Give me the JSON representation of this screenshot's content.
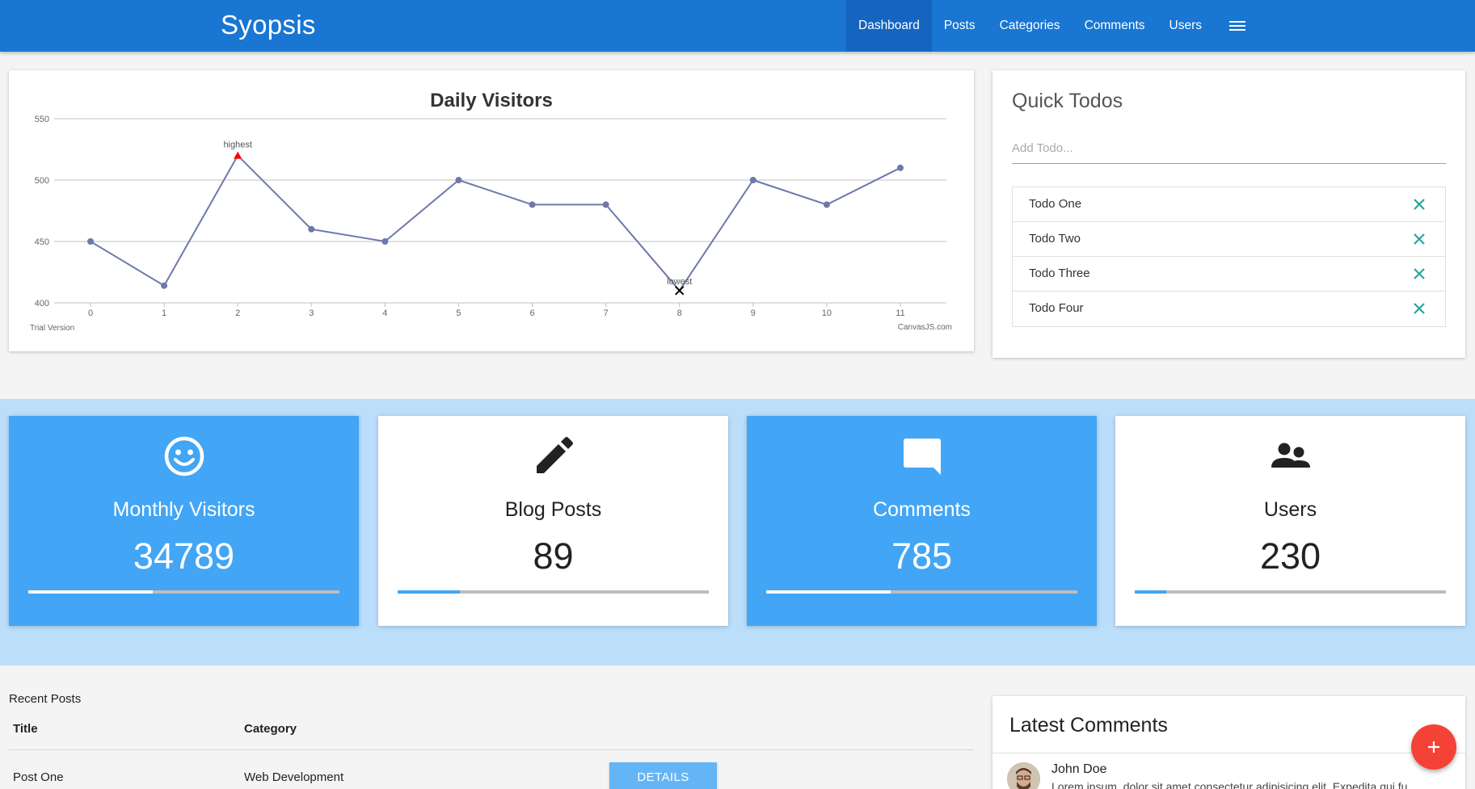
{
  "brand": "Syopsis",
  "nav": {
    "items": [
      {
        "label": "Dashboard",
        "active": true
      },
      {
        "label": "Posts"
      },
      {
        "label": "Categories"
      },
      {
        "label": "Comments"
      },
      {
        "label": "Users"
      }
    ],
    "menu_icon": "hamburger-menu-icon"
  },
  "chart_data": {
    "type": "line",
    "title": "Daily Visitors",
    "x": [
      0,
      1,
      2,
      3,
      4,
      5,
      6,
      7,
      8,
      9,
      10,
      11
    ],
    "values": [
      450,
      414,
      520,
      460,
      450,
      500,
      480,
      480,
      410,
      500,
      480,
      510
    ],
    "ylim": [
      400,
      550
    ],
    "yticks": [
      400,
      450,
      500,
      550
    ],
    "grid": true,
    "color": "#6d78ad",
    "annotations": [
      {
        "index": 2,
        "label": "highest",
        "marker": "triangle",
        "color": "#ff0000"
      },
      {
        "index": 8,
        "label": "lowest",
        "marker": "cross",
        "color": "#000000"
      }
    ],
    "watermark_left": "Trial Version",
    "watermark_right": "CanvasJS.com"
  },
  "todos": {
    "title": "Quick Todos",
    "placeholder": "Add Todo...",
    "items": [
      {
        "label": "Todo One"
      },
      {
        "label": "Todo Two"
      },
      {
        "label": "Todo Three"
      },
      {
        "label": "Todo Four"
      }
    ],
    "delete_color": "#26a69a"
  },
  "stats": [
    {
      "label": "Monthly Visitors",
      "value": "34789",
      "progress": 0.4,
      "icon": "smiley-face-icon",
      "theme": "blue"
    },
    {
      "label": "Blog Posts",
      "value": "89",
      "progress": 0.2,
      "icon": "pencil-icon",
      "theme": "white"
    },
    {
      "label": "Comments",
      "value": "785",
      "progress": 0.4,
      "icon": "comment-bubble-icon",
      "theme": "blue"
    },
    {
      "label": "Users",
      "value": "230",
      "progress": 0.1,
      "icon": "people-icon",
      "theme": "white"
    }
  ],
  "recent_posts": {
    "title": "Recent Posts",
    "columns": [
      "Title",
      "Category"
    ],
    "rows": [
      {
        "title": "Post One",
        "category": "Web Development",
        "action": "DETAILS"
      }
    ]
  },
  "latest_comments": {
    "title": "Latest Comments",
    "items": [
      {
        "author": "John Doe",
        "body": "Lorem ipsum, dolor sit amet consectetur adipisicing elit. Expedita qui fu"
      }
    ]
  },
  "fab": {
    "icon": "plus-icon"
  },
  "colors": {
    "primary": "#1976d2",
    "primary_dark": "#1565c0",
    "stat_blue": "#42a5f5",
    "band": "#bbdefb",
    "fab": "#f44336"
  }
}
